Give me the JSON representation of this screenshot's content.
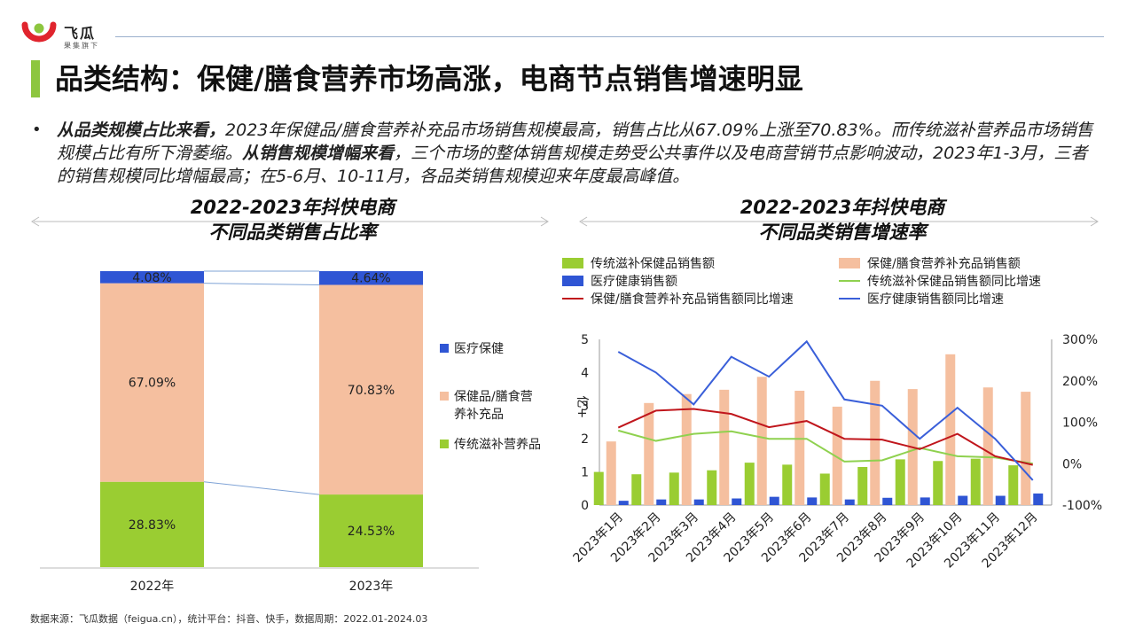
{
  "brand": {
    "name": "飞瓜",
    "subtitle": "果集旗下"
  },
  "page": {
    "title": "品类结构：保健/膳食营养市场高涨，电商节点销售增速明显"
  },
  "summary": {
    "lead1": "从品类规模占比来看，",
    "text1": "2023年保健品/膳食营养补充品市场销售规模最高，销售占比从67.09%上涨至70.83%。而传统滋补营养品市场销售规模占比有所下滑萎缩。",
    "lead2": "从销售规模增幅来看",
    "text2": "，三个市场的整体销售规模走势受公共事件以及电商营销节点影响波动，2023年1-3月，三者的销售规模同比增幅最高；在5-6月、10-11月，各品类销售规模迎来年度最高峰值。"
  },
  "source": "数据来源：飞瓜数据（feigua.cn），统计平台：抖音、快手，数据周期：2022.01-2024.03",
  "colors": {
    "medical": "#2f55d4",
    "health": "#f5bf9f",
    "tonic": "#9acd32",
    "accent": "#8dc63f",
    "health_line": "#c0161c",
    "tonic_line": "#8fd14f",
    "medical_line": "#3a5fd9"
  },
  "chart_data": [
    {
      "type": "bar",
      "stacked": "percent",
      "title": "2022-2023年抖快电商\n不同品类销售占比率",
      "categories": [
        "2022年",
        "2023年"
      ],
      "series": [
        {
          "name": "传统滋补营养品",
          "values": [
            28.83,
            24.53
          ],
          "labels": [
            "28.83%",
            "24.53%"
          ]
        },
        {
          "name": "保健品/膳食营养补充品",
          "values": [
            67.09,
            70.83
          ],
          "labels": [
            "67.09%",
            "70.83%"
          ]
        },
        {
          "name": "医疗保健",
          "values": [
            4.08,
            4.64
          ],
          "labels": [
            "4.08%",
            "4.64%"
          ]
        }
      ],
      "legend": [
        "医疗保健",
        "保健品/膳食营\n养补充品",
        "传统滋补营养品"
      ],
      "legend_position": "right"
    },
    {
      "type": "bar+line",
      "title": "2022-2023年抖快电商\n不同品类销售增速率",
      "categories": [
        "2023年1月",
        "2023年2月",
        "2023年3月",
        "2023年4月",
        "2023年5月",
        "2023年6月",
        "2023年7月",
        "2023年8月",
        "2023年9月",
        "2023年10月",
        "2023年11月",
        "2023年12月"
      ],
      "ylabel": "亿+",
      "ylim": [
        0,
        5
      ],
      "yticks": [
        "0",
        "1",
        "2",
        "3",
        "4",
        "5"
      ],
      "y2lim": [
        -100,
        300
      ],
      "y2ticks": [
        "-100%",
        "0%",
        "100%",
        "200%",
        "300%"
      ],
      "bars": [
        {
          "name": "传统滋补保健品销售额",
          "values": [
            1.0,
            0.93,
            0.98,
            1.05,
            1.28,
            1.22,
            0.95,
            1.15,
            1.38,
            1.33,
            1.4,
            1.2
          ]
        },
        {
          "name": "保健/膳食营养补充品销售额",
          "values": [
            1.92,
            3.08,
            3.35,
            3.48,
            3.87,
            3.45,
            2.97,
            3.75,
            3.5,
            4.55,
            3.55,
            3.42
          ]
        },
        {
          "name": "医疗健康销售额",
          "values": [
            0.13,
            0.17,
            0.17,
            0.2,
            0.25,
            0.23,
            0.17,
            0.22,
            0.23,
            0.28,
            0.28,
            0.35
          ]
        }
      ],
      "lines": [
        {
          "name": "传统滋补保健品销售额同比增速",
          "values": [
            80,
            55,
            72,
            78,
            60,
            60,
            5,
            8,
            38,
            18,
            15,
            0
          ]
        },
        {
          "name": "保健/膳食营养补充品销售额同比增速",
          "values": [
            87,
            128,
            132,
            120,
            88,
            103,
            60,
            58,
            35,
            72,
            18,
            -3
          ]
        },
        {
          "name": "医疗健康销售额同比增速",
          "values": [
            270,
            220,
            143,
            258,
            210,
            295,
            155,
            140,
            60,
            135,
            60,
            -40
          ]
        }
      ],
      "legend_position": "top",
      "grid": false
    }
  ]
}
